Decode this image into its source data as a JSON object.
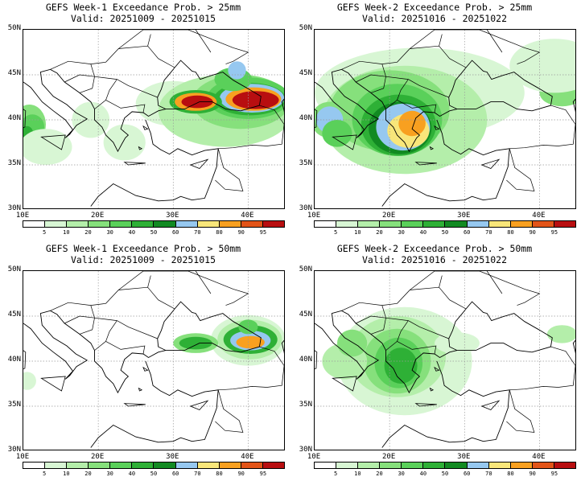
{
  "panels": [
    {
      "title": "GEFS Week-1 Exceedance Prob. > 25mm",
      "valid": "Valid: 20251009 - 20251015"
    },
    {
      "title": "GEFS Week-2 Exceedance Prob. > 25mm",
      "valid": "Valid: 20251016 - 20251022"
    },
    {
      "title": "GEFS Week-1 Exceedance Prob. > 50mm",
      "valid": "Valid: 20251009 - 20251015"
    },
    {
      "title": "GEFS Week-2 Exceedance Prob. > 50mm",
      "valid": "Valid: 20251016 - 20251022"
    }
  ],
  "lat_labels": [
    "50N",
    "45N",
    "40N",
    "35N",
    "30N"
  ],
  "lon_labels": [
    "10E",
    "20E",
    "30E",
    "40E"
  ],
  "colorbar": {
    "ticks": [
      "5",
      "10",
      "20",
      "30",
      "40",
      "50",
      "60",
      "70",
      "80",
      "90",
      "95"
    ],
    "colors": [
      "#ffffff",
      "#d8f6d4",
      "#b4eeaa",
      "#86e07c",
      "#5ad05a",
      "#2eb036",
      "#128a22",
      "#96c8f0",
      "#f8e67a",
      "#f8a020",
      "#e25418",
      "#b80e10",
      "#8e2426"
    ]
  },
  "map_extent": {
    "lon": [
      10,
      45
    ],
    "lat": [
      30,
      50
    ]
  }
}
